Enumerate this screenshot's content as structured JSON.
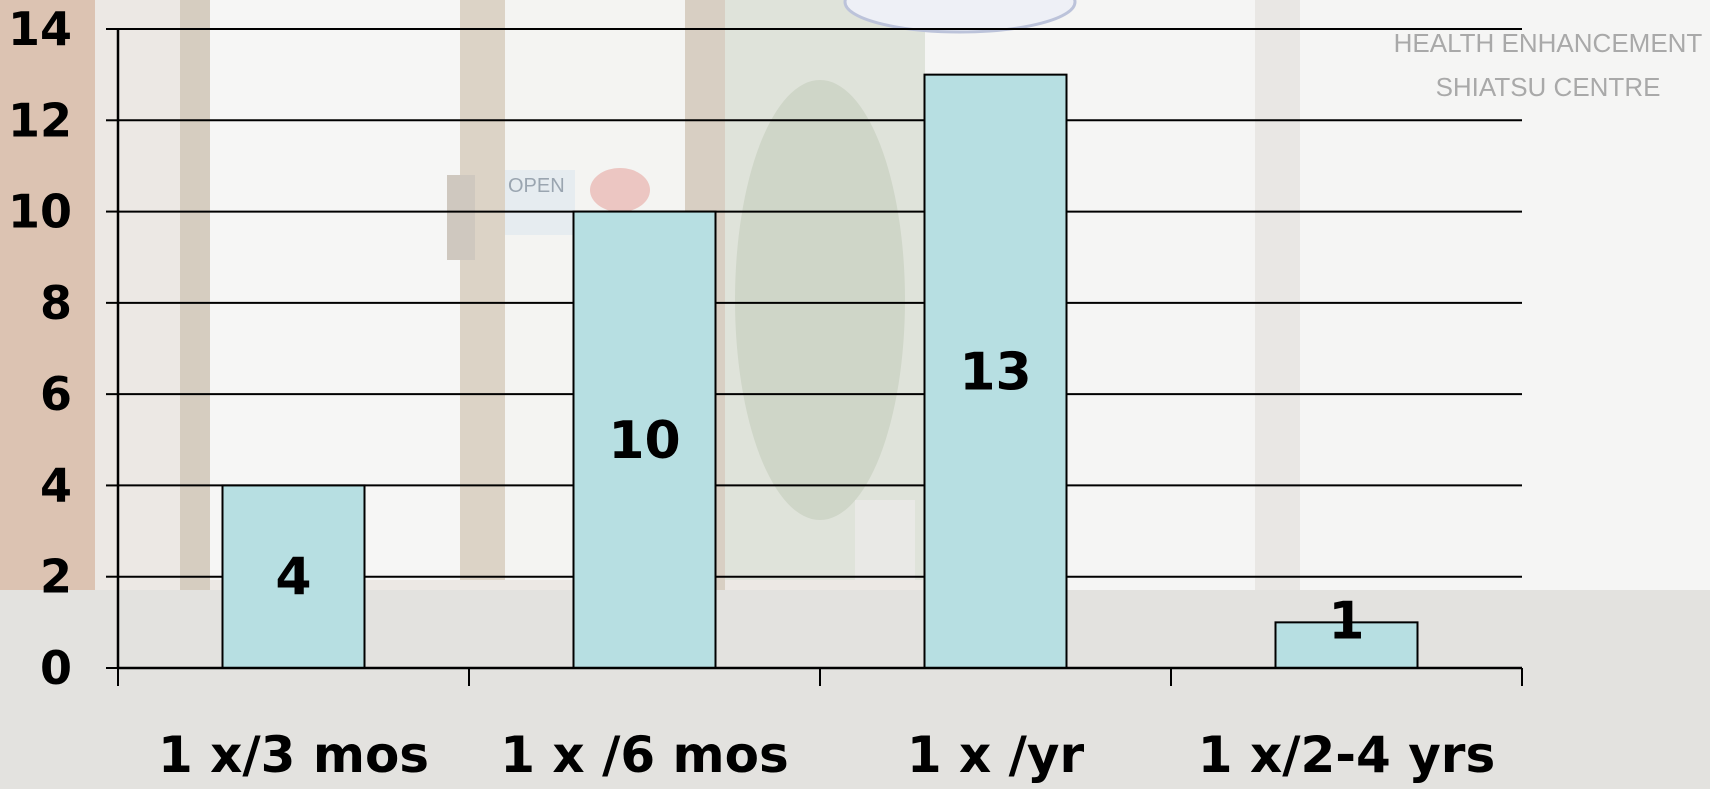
{
  "background": {
    "photo_sign_lines": [
      "HEALTH ENHANCEMENT",
      "SHIATSU CENTRE"
    ],
    "door_sign_text": "OPEN"
  },
  "chart_data": {
    "type": "bar",
    "title": "",
    "xlabel": "",
    "ylabel": "",
    "categories": [
      "1 x/3 mos",
      "1 x /6 mos",
      "1 x /yr",
      "1 x/2-4 yrs"
    ],
    "values": [
      4,
      10,
      13,
      1
    ],
    "data_labels": [
      "4",
      "10",
      "13",
      "1"
    ],
    "ylim": [
      0,
      14
    ],
    "y_ticks": [
      0,
      2,
      4,
      6,
      8,
      10,
      12,
      14
    ],
    "grid": true,
    "legend": "none",
    "bar_color": "#b7dfe2",
    "bar_outline_color": "#000000"
  }
}
